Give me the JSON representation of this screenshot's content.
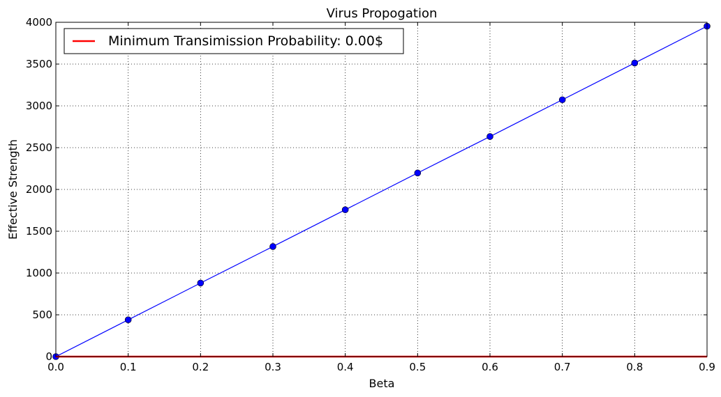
{
  "chart_data": {
    "type": "line",
    "title": "Virus Propogation",
    "xlabel": "Beta",
    "ylabel": "Effective Strength",
    "xlim": [
      0.0,
      0.9
    ],
    "ylim": [
      0,
      4000
    ],
    "xticks": [
      0.0,
      0.1,
      0.2,
      0.3,
      0.4,
      0.5,
      0.6,
      0.7,
      0.8,
      0.9
    ],
    "xtick_labels": [
      "0.0",
      "0.1",
      "0.2",
      "0.3",
      "0.4",
      "0.5",
      "0.6",
      "0.7",
      "0.8",
      "0.9"
    ],
    "yticks": [
      0,
      500,
      1000,
      1500,
      2000,
      2500,
      3000,
      3500,
      4000
    ],
    "ytick_labels": [
      "0",
      "500",
      "1000",
      "1500",
      "2000",
      "2500",
      "3000",
      "3500",
      "4000"
    ],
    "grid": true,
    "legend_position": "top-left",
    "series": [
      {
        "color": "#0000ff",
        "marker": "circle",
        "x": [
          0.0,
          0.1,
          0.2,
          0.3,
          0.4,
          0.5,
          0.6,
          0.7,
          0.8,
          0.9
        ],
        "y": [
          0,
          440,
          880,
          1317,
          1757,
          2197,
          2633,
          3073,
          3513,
          3953
        ]
      },
      {
        "name": "Minimum Transimission Probability: 0.00$",
        "color": "#ff0000",
        "marker": "none",
        "x": [
          0.0,
          0.9
        ],
        "y": [
          0,
          0
        ]
      }
    ]
  }
}
